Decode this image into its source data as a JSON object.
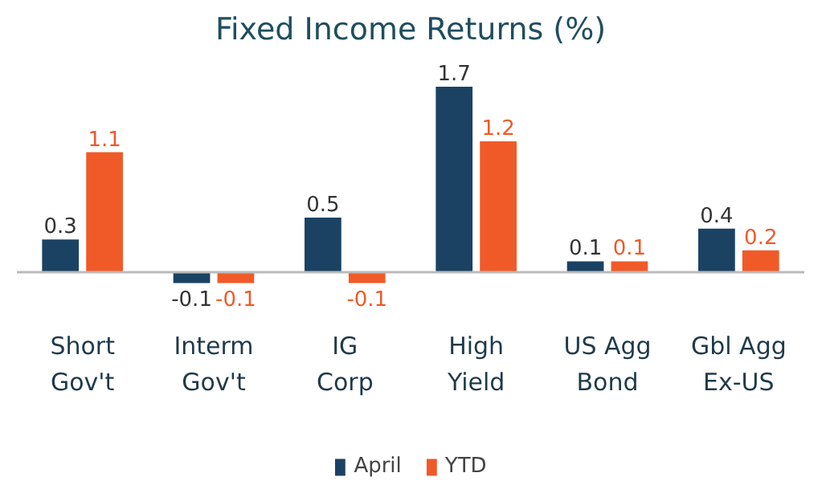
{
  "chart_data": {
    "type": "bar",
    "title": "Fixed Income Returns (%)",
    "categories": [
      "Short\nGov't",
      "Interm\nGov't",
      "IG\nCorp",
      "High\nYield",
      "US Agg\nBond",
      "Gbl Agg\nEx-US"
    ],
    "series": [
      {
        "name": "April",
        "color": "#1b4263",
        "values": [
          0.3,
          -0.1,
          0.5,
          1.7,
          0.1,
          0.4
        ]
      },
      {
        "name": "YTD",
        "color": "#f05a28",
        "values": [
          1.1,
          -0.1,
          -0.1,
          1.2,
          0.1,
          0.2
        ]
      }
    ],
    "data_labels": true,
    "legend": "bottom"
  }
}
